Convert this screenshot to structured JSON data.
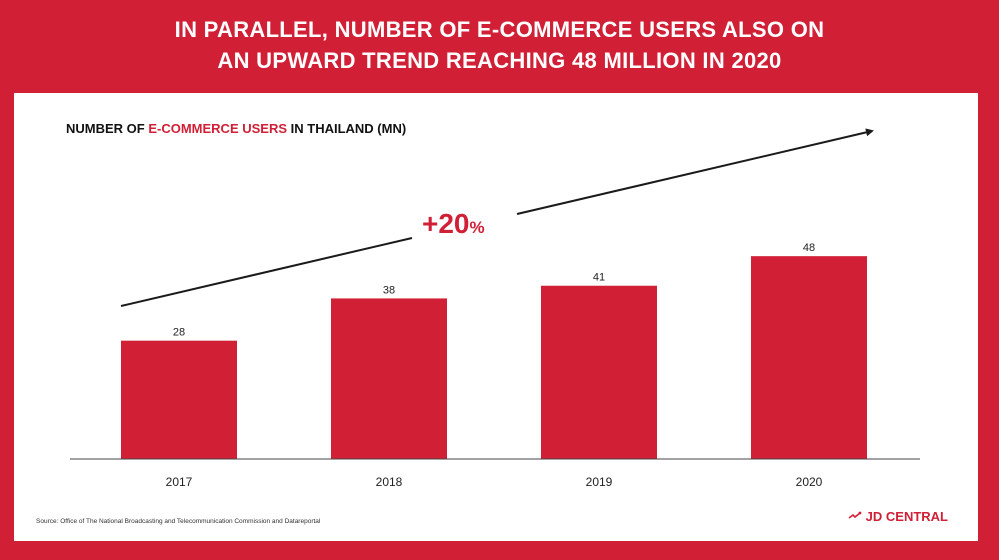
{
  "headline": {
    "line1": "IN PARALLEL, NUMBER OF E-COMMERCE USERS ALSO ON",
    "line2": "AN UPWARD TREND REACHING 48 MILLION IN 2020"
  },
  "subtitle": {
    "prefix": "NUMBER OF ",
    "highlight": "E-COMMERCE USERS",
    "suffix": " IN THAILAND (MN)"
  },
  "growth_label": "+20",
  "growth_unit": "%",
  "source": "Source: Office of The National Broadcasting and Telecommunication Commission and Datareportal",
  "brand": "JD CENTRAL",
  "colors": {
    "accent": "#d11f36",
    "bar": "#d11f36",
    "background": "#ffffff",
    "text": "#111111"
  },
  "chart_data": {
    "type": "bar",
    "title": "NUMBER OF E-COMMERCE USERS IN THAILAND (MN)",
    "categories": [
      "2017",
      "2018",
      "2019",
      "2020"
    ],
    "values": [
      28,
      38,
      41,
      48
    ],
    "data_labels": [
      "28",
      "38",
      "41",
      "48"
    ],
    "xlabel": "",
    "ylabel": "",
    "ylim": [
      0,
      62
    ],
    "grid": false,
    "legend": "none",
    "annotation": "+20%"
  }
}
